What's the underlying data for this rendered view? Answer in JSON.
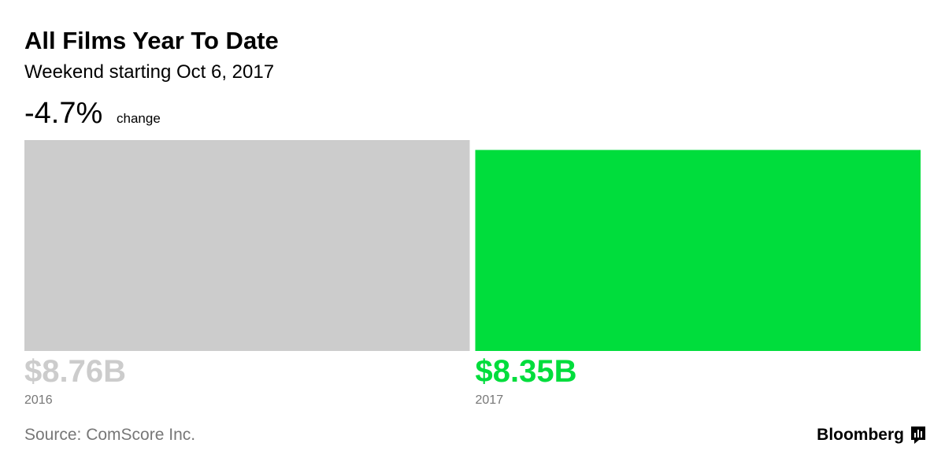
{
  "chart_data": {
    "type": "bar",
    "title": "All Films Year To Date",
    "subtitle": "Weekend starting Oct 6, 2017",
    "change_label": "-4.7%",
    "change_text": "change",
    "categories": [
      "2016",
      "2017"
    ],
    "values": [
      8.76,
      8.35
    ],
    "value_labels": [
      "$8.76B",
      "$8.35B"
    ],
    "colors": [
      "#cccccc",
      "#00dd3c"
    ],
    "source": "Source: ComScore Inc.",
    "brand": "Bloomberg"
  }
}
